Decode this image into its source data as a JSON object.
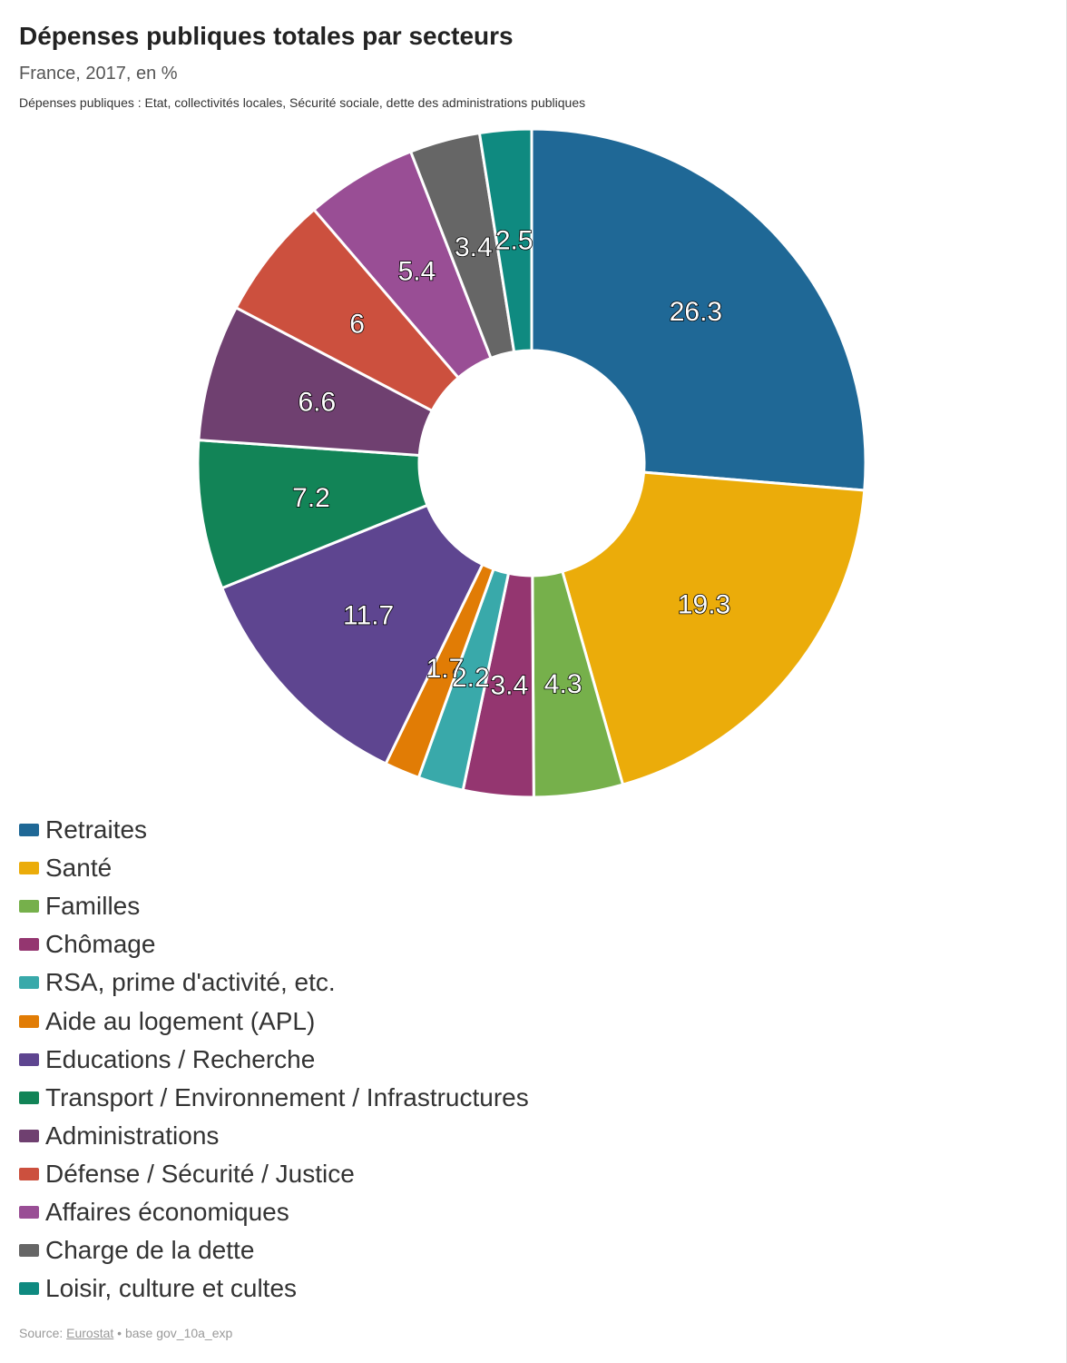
{
  "header": {
    "title": "Dépenses publiques totales par secteurs",
    "subtitle": "France, 2017, en %",
    "note": "Dépenses publiques : Etat, collectivités locales, Sécurité sociale, dette des administrations publiques"
  },
  "footer": {
    "source_prefix": "Source: ",
    "source_link": "Eurostat",
    "source_suffix": " • base gov_10a_exp"
  },
  "chart_data": {
    "type": "pie",
    "donut": true,
    "categories": [
      "Retraites",
      "Santé",
      "Familles",
      "Chômage",
      "RSA, prime d'activité, etc.",
      "Aide au logement (APL)",
      "Educations / Recherche",
      "Transport / Environnement / Infrastructures",
      "Administrations",
      "Défense / Sécurité / Justice",
      "Affaires économiques",
      "Charge de la dette",
      "Loisir, culture et cultes"
    ],
    "values": [
      26.3,
      19.3,
      4.3,
      3.4,
      2.2,
      1.7,
      11.7,
      7.2,
      6.6,
      6,
      5.4,
      3.4,
      2.5
    ],
    "labels": [
      "26.3",
      "19.3",
      "4.3",
      "3.4",
      "2.2",
      "1.7",
      "11.7",
      "7.2",
      "6.6",
      "6",
      "5.4",
      "3.4",
      "2.5"
    ],
    "colors": [
      "#1f6896",
      "#ebac0a",
      "#76b04b",
      "#943670",
      "#39a9aa",
      "#e17c05",
      "#5e4590",
      "#128457",
      "#6f4070",
      "#cc503e",
      "#994e95",
      "#666666",
      "#0f8a80"
    ],
    "legend_position": "bottom-left"
  }
}
